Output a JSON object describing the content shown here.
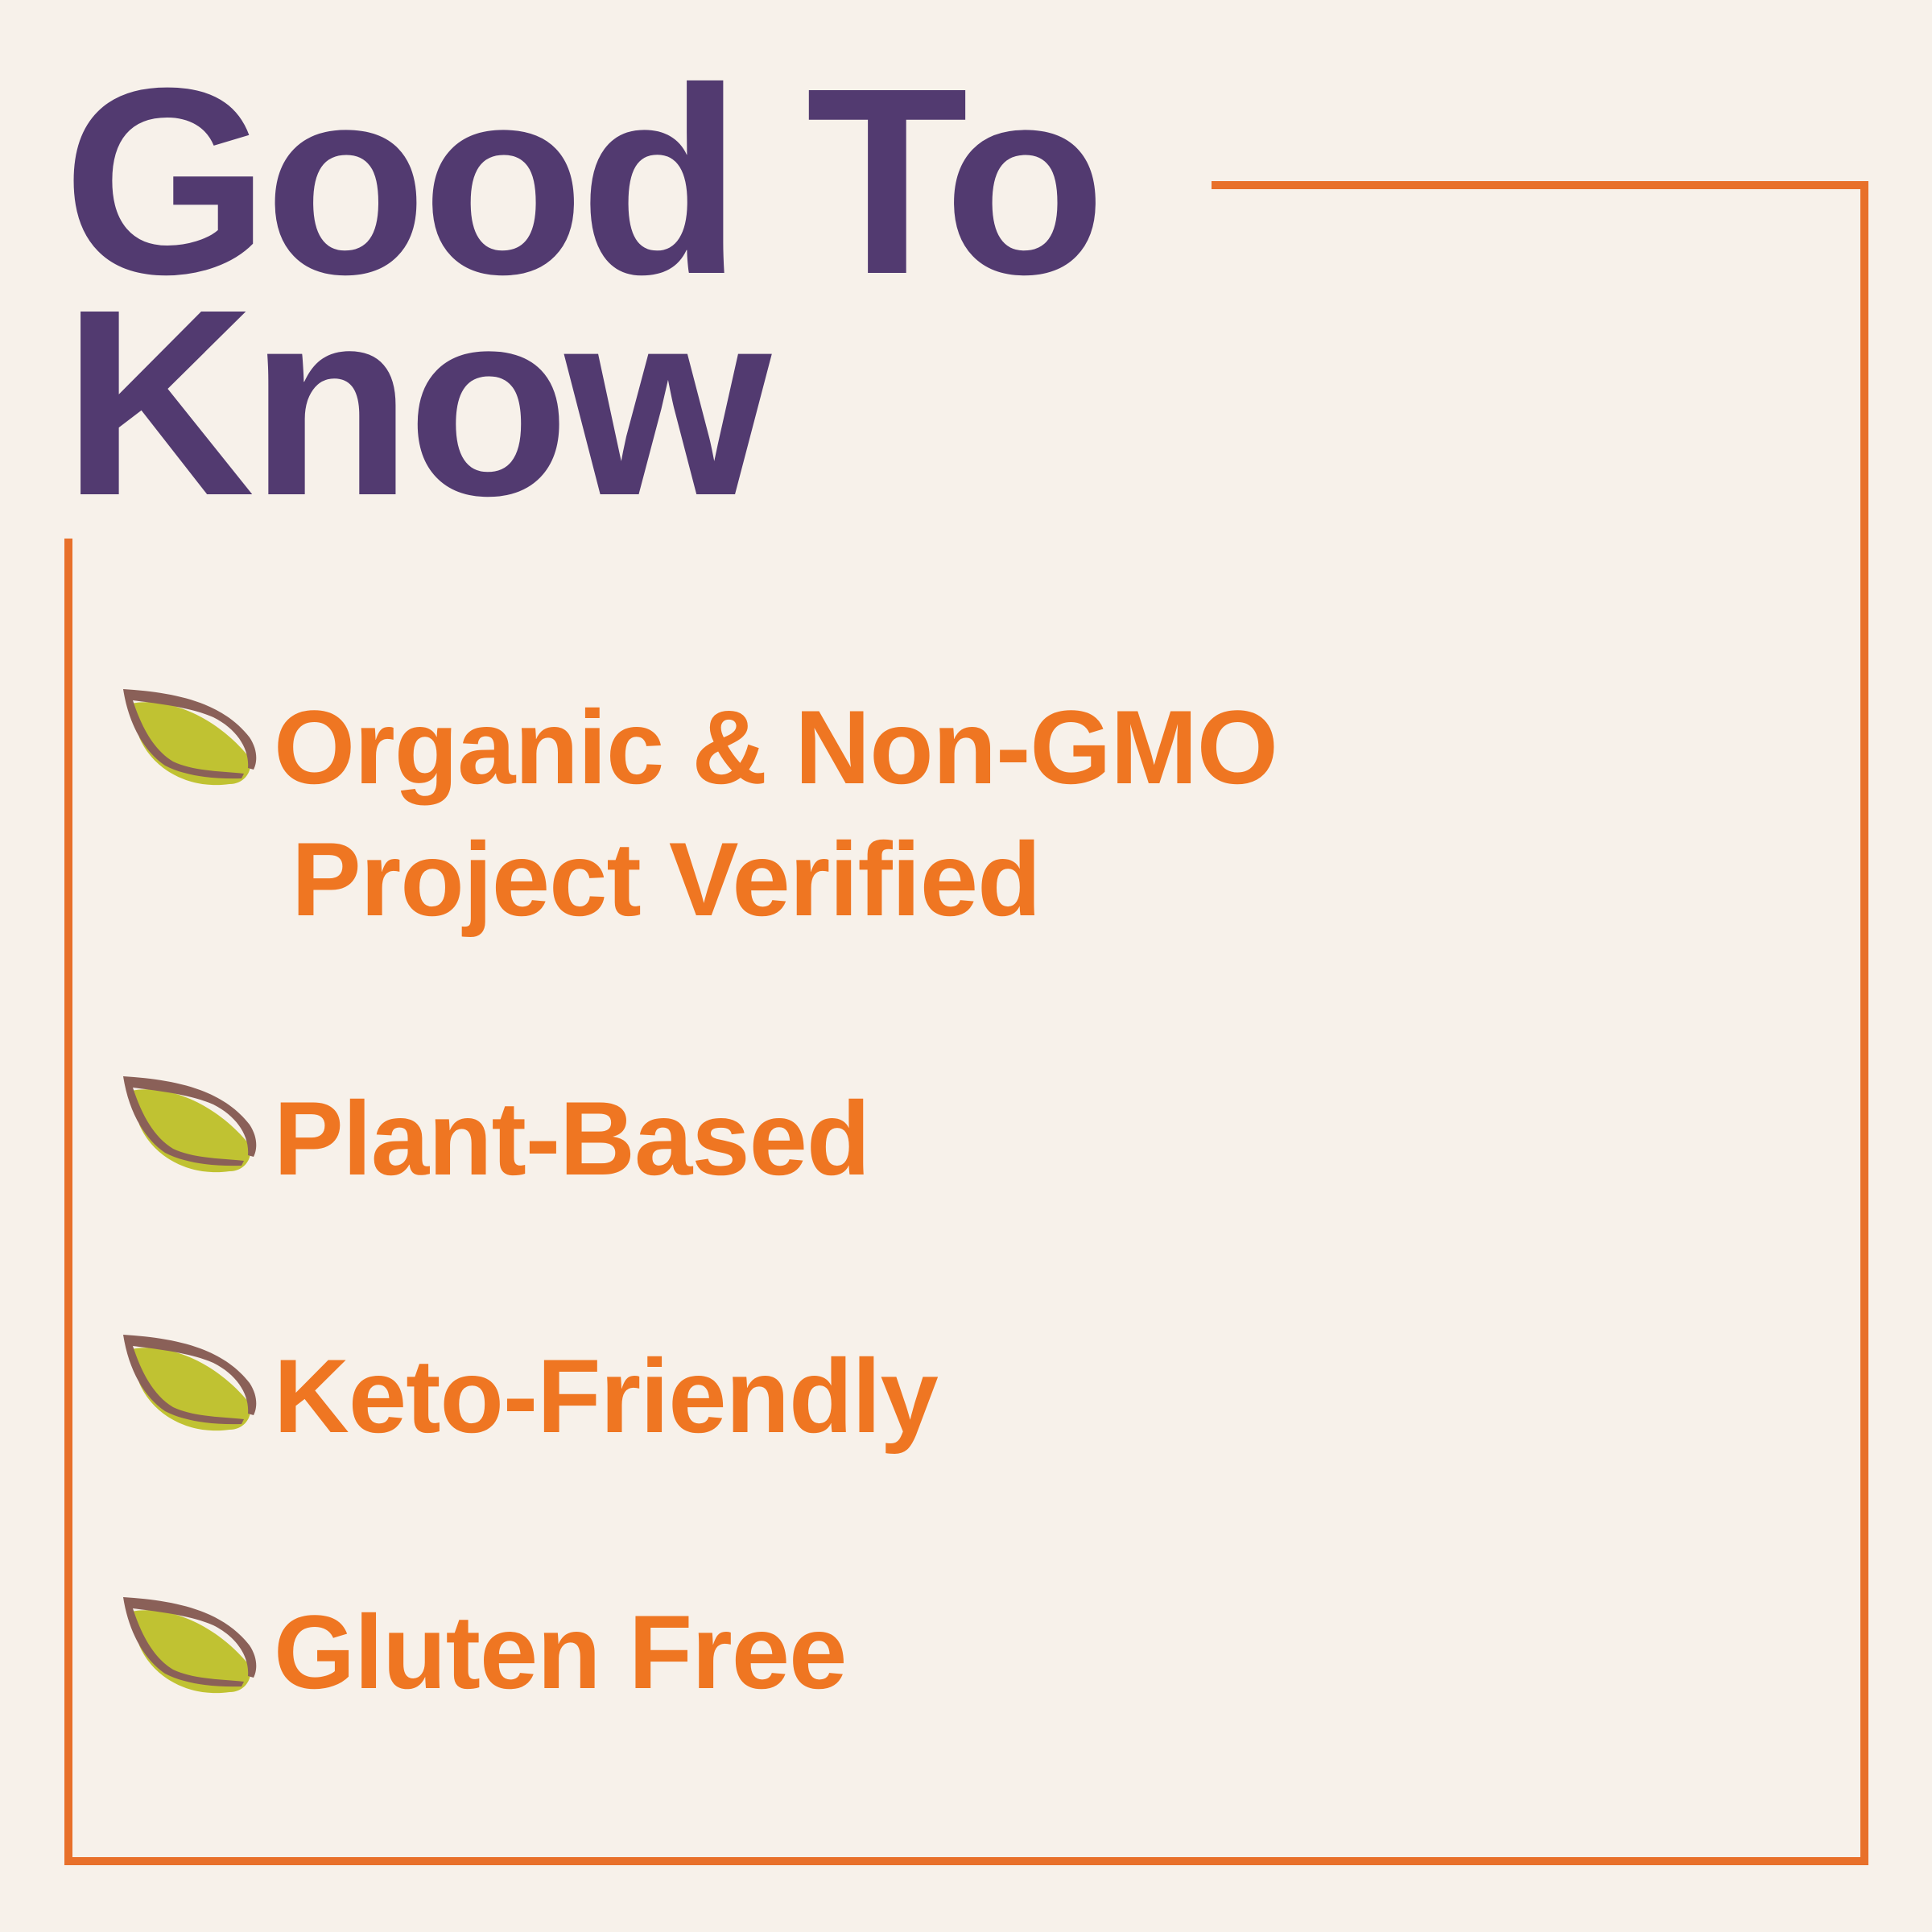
{
  "title": {
    "line1": "Good To",
    "line2": "Know"
  },
  "items": [
    {
      "line1": "Organic & Non-GMO",
      "line2": "Project Verified",
      "icon": "leaf-icon"
    },
    {
      "line1": "Plant-Based",
      "icon": "leaf-icon"
    },
    {
      "line1": "Keto-Friendly",
      "icon": "leaf-icon"
    },
    {
      "line1": "Gluten Free",
      "icon": "leaf-icon"
    }
  ],
  "colors": {
    "background": "#f7f1ea",
    "title": "#523a70",
    "accent": "#ef7622",
    "leaf_green": "#c0c232",
    "leaf_brown": "#8a6058"
  }
}
